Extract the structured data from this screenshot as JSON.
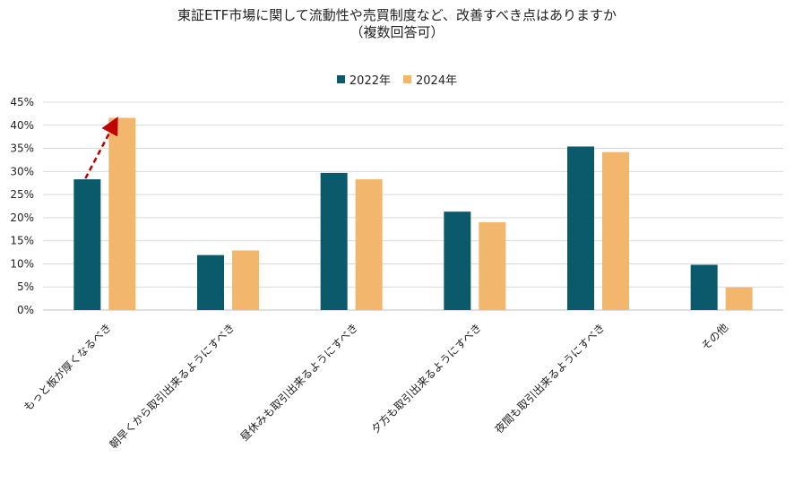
{
  "chart_data": {
    "type": "bar",
    "title": "東証ETF市場に関して流動性や売買制度など、改善すべき点はありますか",
    "subtitle": "（複数回答可）",
    "categories": [
      "もっと板が厚くなるべき",
      "朝早くから取引出来るようにすべき",
      "昼休みも取引出来るようにすべき",
      "夕方も取引出来るようにすべき",
      "夜間も取引出来るようにすべき",
      "その他"
    ],
    "series": [
      {
        "name": "2022年",
        "color": "#0b5a6b",
        "values": [
          28.3,
          11.9,
          29.7,
          21.3,
          35.4,
          9.8
        ]
      },
      {
        "name": "2024年",
        "color": "#f2b76d",
        "values": [
          41.6,
          12.9,
          28.3,
          19.0,
          34.2,
          4.9
        ]
      }
    ],
    "yticks": [
      "0%",
      "5%",
      "10%",
      "15%",
      "20%",
      "25%",
      "30%",
      "35%",
      "40%",
      "45%"
    ],
    "ylim": [
      0,
      45
    ],
    "grid": true,
    "legend_position": "top-center",
    "annotation": {
      "type": "dashed-arrow",
      "color": "#c00000",
      "from_category": 0,
      "from_series": 0,
      "to_series": 1
    }
  }
}
